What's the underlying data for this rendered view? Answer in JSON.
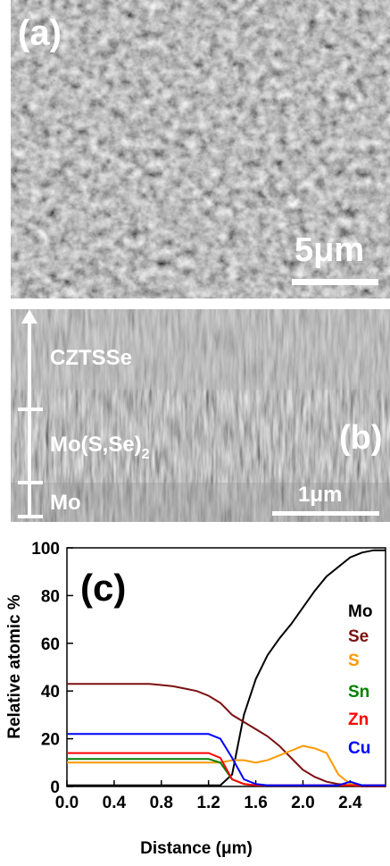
{
  "panels": {
    "a": {
      "label": "(a)",
      "scale_bar": "5μm"
    },
    "b": {
      "label": "(b)",
      "scale_bar": "1μm",
      "layers": [
        "CZTSSe",
        "Mo",
        {
          "text": "Mo(S,Se)",
          "subscript": "2"
        }
      ]
    }
  },
  "chart_data": {
    "type": "line",
    "panel_label": "(c)",
    "x_label": "Distance (μm)",
    "y_label": "Relative atomic %",
    "xlim": [
      0,
      2.7
    ],
    "ylim": [
      0,
      100
    ],
    "xticks": [
      {
        "value": 0,
        "label": "0.0"
      },
      0.4,
      0.8,
      1.2,
      1.6,
      {
        "value": 2,
        "label": "2.0"
      },
      2.4
    ],
    "yticks": [
      0,
      20,
      40,
      60,
      80,
      100
    ],
    "legend": "right",
    "x": [
      0,
      0.1,
      0.2,
      0.3,
      0.4,
      0.5,
      0.6,
      0.7,
      0.8,
      0.9,
      1.0,
      1.1,
      1.2,
      1.3,
      1.4,
      1.5,
      1.6,
      1.7,
      1.8,
      1.9,
      2.0,
      2.1,
      2.2,
      2.3,
      2.4,
      2.5,
      2.6,
      2.7
    ],
    "series": [
      {
        "name": "Mo",
        "color": "#000000",
        "values": [
          0.5,
          0.5,
          0.5,
          0.5,
          0.5,
          0.5,
          0.5,
          0.5,
          0.5,
          0.5,
          0.5,
          0.5,
          0.5,
          0.5,
          5,
          30,
          45,
          55,
          62,
          68,
          75,
          82,
          88,
          92,
          96,
          98,
          99,
          99
        ]
      },
      {
        "name": "Se",
        "color": "#7b1010",
        "values": [
          43,
          43,
          43,
          43,
          43,
          43,
          43,
          43,
          42.5,
          42,
          41,
          40,
          38,
          35,
          30,
          27,
          24,
          21,
          17,
          12,
          7,
          4,
          2,
          1,
          0.5,
          0,
          0,
          0
        ]
      },
      {
        "name": "S",
        "color": "#ff9900",
        "values": [
          10,
          10,
          10,
          10,
          10,
          10,
          10,
          10,
          10,
          10,
          10,
          10,
          10,
          10,
          11,
          11,
          10,
          11,
          13,
          15,
          17,
          16,
          14,
          5,
          1,
          0.5,
          0.5,
          0.5
        ]
      },
      {
        "name": "Sn",
        "color": "#008000",
        "values": [
          11.5,
          11.5,
          11.5,
          11.5,
          11.5,
          11.5,
          11.5,
          11.5,
          11.5,
          11.5,
          11.5,
          11.5,
          11.5,
          10,
          3,
          1,
          0.5,
          0.5,
          0.5,
          0.5,
          0.5,
          0.5,
          0.5,
          0.5,
          0.5,
          0.5,
          0.5,
          0.5
        ]
      },
      {
        "name": "Zn",
        "color": "#ff0000",
        "values": [
          14,
          14,
          14,
          14,
          14,
          14,
          14,
          14,
          14,
          14,
          14,
          14,
          14,
          12,
          3,
          1,
          0.5,
          0.5,
          0.5,
          0.5,
          0.5,
          0.5,
          0.5,
          0.5,
          0.5,
          0.5,
          0.5,
          0.5
        ]
      },
      {
        "name": "Cu",
        "color": "#0000ff",
        "values": [
          22,
          22,
          22,
          22,
          22,
          22,
          22,
          22,
          22,
          22,
          22,
          22,
          22,
          20,
          12,
          3,
          1,
          0.5,
          0.5,
          0.5,
          0.5,
          0.5,
          0.5,
          0.5,
          2,
          0.5,
          0.5,
          0.5
        ]
      }
    ]
  }
}
